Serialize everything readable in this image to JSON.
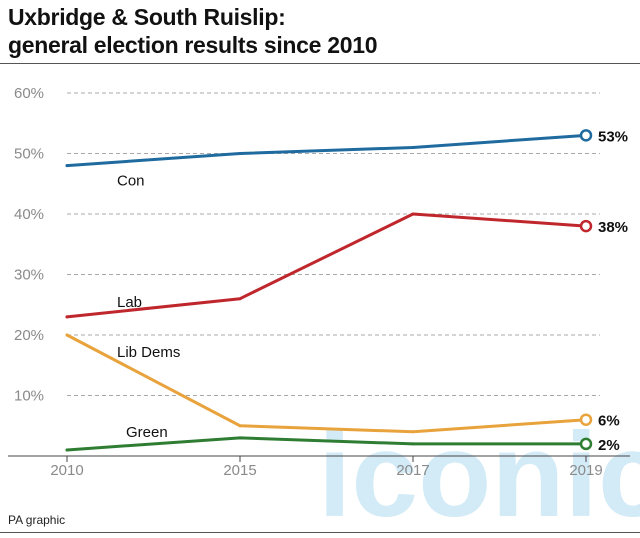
{
  "header": {
    "title": "Uxbridge & South Ruislip:",
    "subtitle": "general election results since 2010"
  },
  "footer": {
    "source": "PA graphic"
  },
  "watermark": {
    "text": "iconic",
    "color": "#9fd3ec"
  },
  "chart_data": {
    "type": "line",
    "title": "Uxbridge & South Ruislip:",
    "subtitle": "general election results since 2010",
    "xlabel": "",
    "ylabel": "",
    "x": [
      2010,
      2015,
      2017,
      2019
    ],
    "x_tick_labels": [
      "2010",
      "2015",
      "2017",
      "2019"
    ],
    "ylim": [
      0,
      60
    ],
    "y_ticks": [
      10,
      20,
      30,
      40,
      50,
      60
    ],
    "y_tick_labels": [
      "10%",
      "20%",
      "30%",
      "40%",
      "50%",
      "60%"
    ],
    "grid": "horizontal dashed",
    "series": [
      {
        "name": "Con",
        "values": [
          48,
          50,
          51,
          53
        ],
        "color": "#1f6b9f",
        "end_label": "53%"
      },
      {
        "name": "Lab",
        "values": [
          23,
          26,
          40,
          38
        ],
        "color": "#c0272d",
        "end_label": "38%"
      },
      {
        "name": "Lib Dems",
        "values": [
          20,
          5,
          4,
          6
        ],
        "color": "#e8a33d",
        "end_label": "6%"
      },
      {
        "name": "Green",
        "values": [
          1,
          3,
          2,
          2
        ],
        "color": "#2e7d32",
        "end_label": "2%"
      }
    ]
  }
}
